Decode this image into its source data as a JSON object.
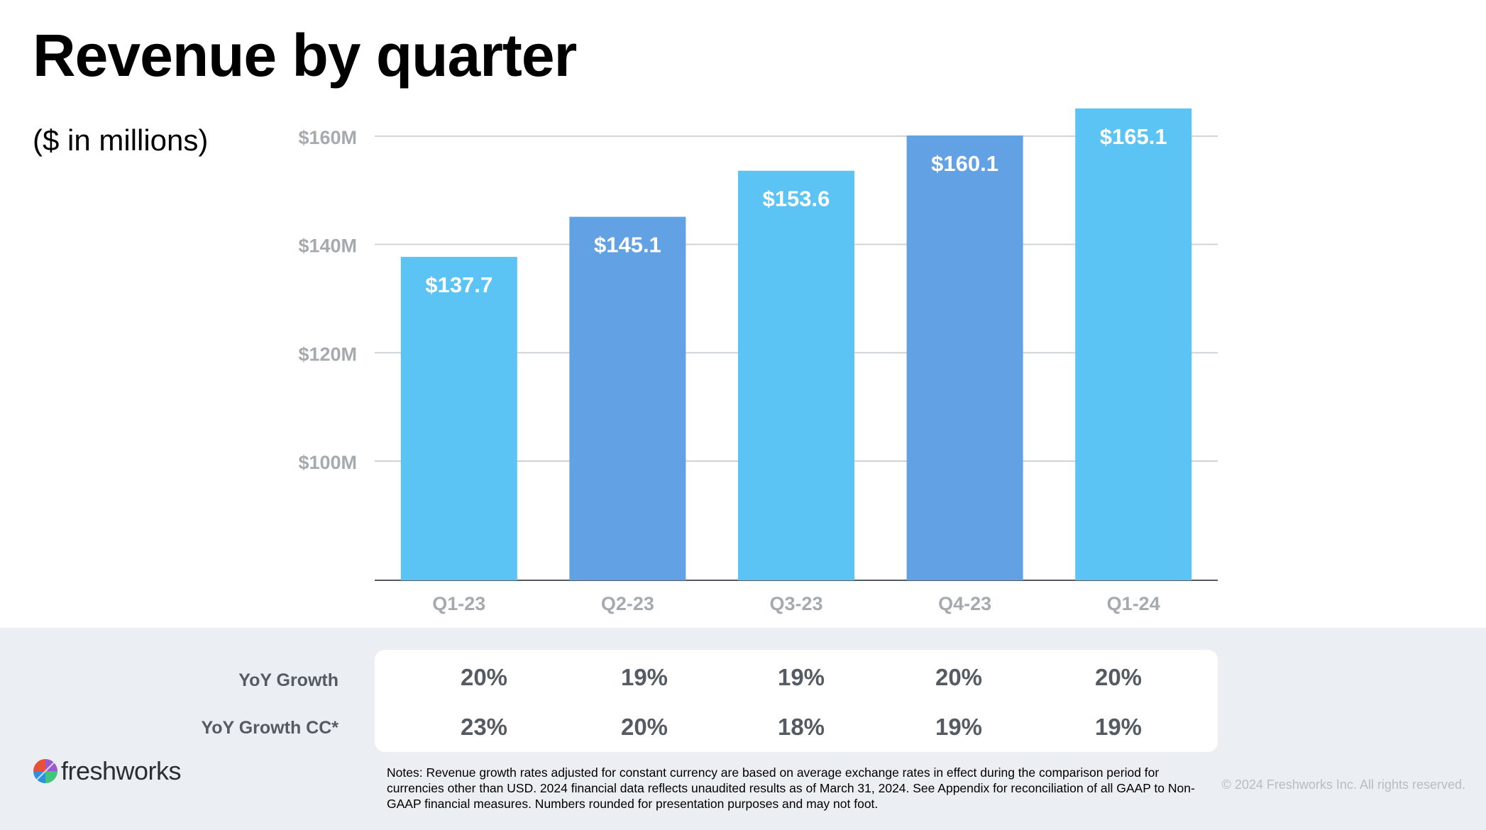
{
  "title": "Revenue by quarter",
  "subtitle": "($ in millions)",
  "colors": {
    "light_bar": "#5bc4f5",
    "dark_bar": "#62a1e3",
    "grid": "#d0d3d6",
    "axis_text": "#a6aaaf",
    "band": "#ebeef2"
  },
  "chart_data": {
    "type": "bar",
    "categories": [
      "Q1-23",
      "Q2-23",
      "Q3-23",
      "Q4-23",
      "Q1-24"
    ],
    "values": [
      137.7,
      145.1,
      153.6,
      160.1,
      165.1
    ],
    "data_labels": [
      "$137.7",
      "$145.1",
      "$153.6",
      "$160.1",
      "$165.1"
    ],
    "bar_colors": [
      "#5bc4f5",
      "#62a1e3",
      "#5bc4f5",
      "#62a1e3",
      "#5bc4f5"
    ],
    "ylim": [
      78,
      166
    ],
    "yticks": [
      {
        "value": 100,
        "label": "$100M"
      },
      {
        "value": 120,
        "label": "$120M"
      },
      {
        "value": 140,
        "label": "$140M"
      },
      {
        "value": 160,
        "label": "$160M"
      }
    ],
    "grid": true,
    "xlabel": "",
    "ylabel": ""
  },
  "growth_table": {
    "rows": [
      {
        "label": "YoY Growth",
        "values": [
          "20%",
          "19%",
          "19%",
          "20%",
          "20%"
        ]
      },
      {
        "label": "YoY Growth CC*",
        "values": [
          "23%",
          "20%",
          "18%",
          "19%",
          "19%"
        ]
      }
    ]
  },
  "logo_text": "freshworks",
  "notes": "Notes: Revenue growth rates adjusted for constant currency are based on average exchange rates in effect during the comparison period for currencies other than USD. 2024 financial data reflects unaudited results as of March 31, 2024. See Appendix for reconciliation of all GAAP to Non-GAAP financial measures. Numbers rounded for presentation purposes and may not foot.",
  "copyright": "© 2024 Freshworks Inc. All rights reserved."
}
